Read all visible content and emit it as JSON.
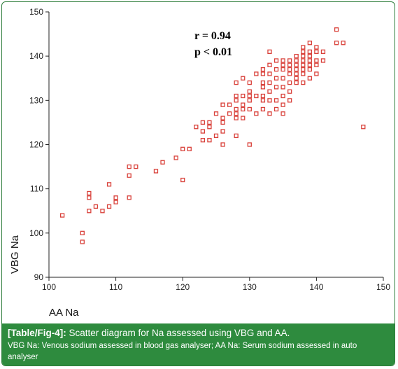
{
  "chart_data": {
    "type": "scatter",
    "xlabel": "AA Na",
    "ylabel": "VBG Na",
    "xlim": [
      100,
      150
    ],
    "ylim": [
      90,
      150
    ],
    "xticks": [
      100,
      110,
      120,
      130,
      140,
      150
    ],
    "yticks": [
      90,
      100,
      110,
      120,
      130,
      140,
      150
    ],
    "grid": false,
    "marker": "open-square",
    "color": "#d9413a",
    "annotations": [
      "r = 0.94",
      "p < 0.01"
    ],
    "points": [
      [
        102,
        104
      ],
      [
        105,
        100
      ],
      [
        105,
        98
      ],
      [
        106,
        108
      ],
      [
        106,
        109
      ],
      [
        106,
        105
      ],
      [
        107,
        106
      ],
      [
        108,
        105
      ],
      [
        109,
        106
      ],
      [
        109,
        111
      ],
      [
        110,
        107
      ],
      [
        110,
        108
      ],
      [
        112,
        108
      ],
      [
        112,
        113
      ],
      [
        112,
        115
      ],
      [
        113,
        115
      ],
      [
        116,
        114
      ],
      [
        117,
        116
      ],
      [
        119,
        117
      ],
      [
        120,
        119
      ],
      [
        121,
        119
      ],
      [
        120,
        112
      ],
      [
        122,
        124
      ],
      [
        123,
        125
      ],
      [
        123,
        123
      ],
      [
        123,
        121
      ],
      [
        124,
        121
      ],
      [
        124,
        124
      ],
      [
        124,
        125
      ],
      [
        125,
        122
      ],
      [
        125,
        127
      ],
      [
        126,
        120
      ],
      [
        126,
        123
      ],
      [
        126,
        125
      ],
      [
        126,
        126
      ],
      [
        126,
        129
      ],
      [
        127,
        127
      ],
      [
        127,
        129
      ],
      [
        128,
        122
      ],
      [
        128,
        126
      ],
      [
        128,
        127
      ],
      [
        128,
        128
      ],
      [
        128,
        130
      ],
      [
        128,
        131
      ],
      [
        128,
        134
      ],
      [
        129,
        126
      ],
      [
        129,
        128
      ],
      [
        129,
        129
      ],
      [
        129,
        131
      ],
      [
        129,
        135
      ],
      [
        130,
        120
      ],
      [
        130,
        128
      ],
      [
        130,
        130
      ],
      [
        130,
        131
      ],
      [
        130,
        132
      ],
      [
        130,
        134
      ],
      [
        131,
        127
      ],
      [
        131,
        131
      ],
      [
        131,
        136
      ],
      [
        132,
        128
      ],
      [
        132,
        130
      ],
      [
        132,
        131
      ],
      [
        132,
        133
      ],
      [
        132,
        134
      ],
      [
        132,
        136
      ],
      [
        132,
        137
      ],
      [
        133,
        127
      ],
      [
        133,
        130
      ],
      [
        133,
        132
      ],
      [
        133,
        134
      ],
      [
        133,
        136
      ],
      [
        133,
        138
      ],
      [
        133,
        141
      ],
      [
        134,
        128
      ],
      [
        134,
        130
      ],
      [
        134,
        133
      ],
      [
        134,
        135
      ],
      [
        134,
        137
      ],
      [
        134,
        139
      ],
      [
        135,
        127
      ],
      [
        135,
        129
      ],
      [
        135,
        131
      ],
      [
        135,
        133
      ],
      [
        135,
        135
      ],
      [
        135,
        137
      ],
      [
        135,
        138
      ],
      [
        135,
        139
      ],
      [
        136,
        130
      ],
      [
        136,
        132
      ],
      [
        136,
        134
      ],
      [
        136,
        136
      ],
      [
        136,
        137
      ],
      [
        136,
        138
      ],
      [
        136,
        139
      ],
      [
        137,
        134
      ],
      [
        137,
        135
      ],
      [
        137,
        136
      ],
      [
        137,
        137
      ],
      [
        137,
        138
      ],
      [
        137,
        139
      ],
      [
        137,
        140
      ],
      [
        138,
        134
      ],
      [
        138,
        136
      ],
      [
        138,
        137
      ],
      [
        138,
        138
      ],
      [
        138,
        139
      ],
      [
        138,
        140
      ],
      [
        138,
        141
      ],
      [
        138,
        142
      ],
      [
        139,
        135
      ],
      [
        139,
        137
      ],
      [
        139,
        138
      ],
      [
        139,
        139
      ],
      [
        139,
        140
      ],
      [
        139,
        141
      ],
      [
        139,
        143
      ],
      [
        140,
        136
      ],
      [
        140,
        138
      ],
      [
        140,
        139
      ],
      [
        140,
        141
      ],
      [
        140,
        142
      ],
      [
        141,
        139
      ],
      [
        141,
        141
      ],
      [
        143,
        146
      ],
      [
        143,
        143
      ],
      [
        144,
        143
      ],
      [
        147,
        124
      ]
    ]
  },
  "caption": {
    "label": "[Table/Fig-4]:",
    "title": " Scatter diagram for Na assessed using VBG and AA.",
    "note": "VBG Na: Venous sodium assessed in blood gas analyser; AA Na: Serum sodium assessed in auto analyser"
  }
}
